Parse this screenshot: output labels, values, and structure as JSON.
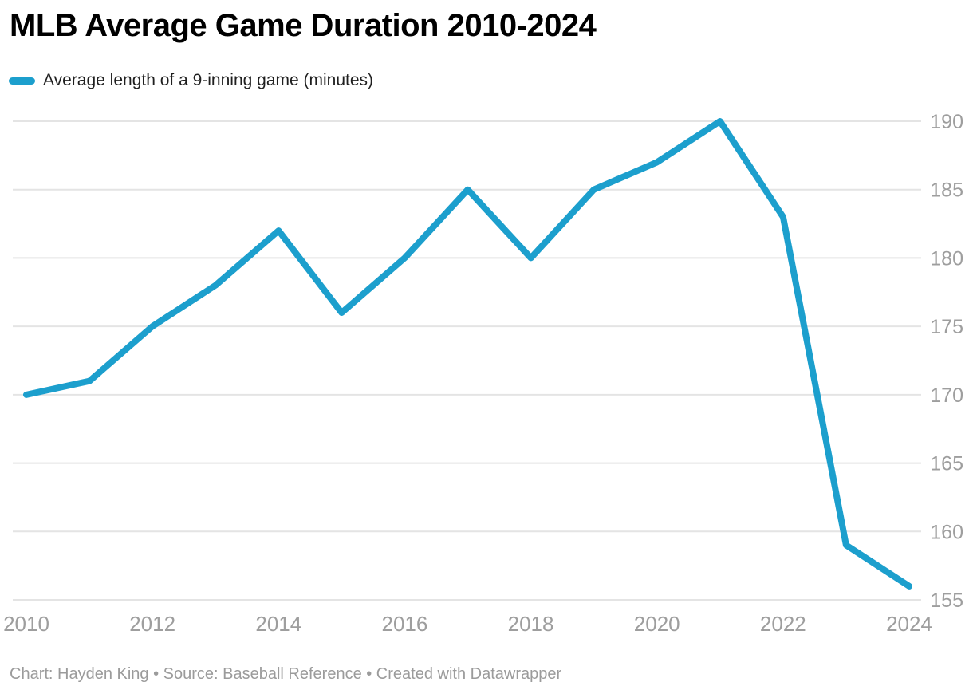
{
  "header": {
    "title": "MLB Average Game Duration 2010-2024"
  },
  "legend": {
    "label": "Average length of a 9-inning game (minutes)"
  },
  "footer": {
    "text": "Chart: Hayden King • Source: Baseball Reference • Created with Datawrapper"
  },
  "chart_data": {
    "type": "line",
    "title": "MLB Average Game Duration 2010-2024",
    "x": [
      2010,
      2011,
      2012,
      2013,
      2014,
      2015,
      2016,
      2017,
      2018,
      2019,
      2020,
      2021,
      2022,
      2023,
      2024
    ],
    "series": [
      {
        "name": "Average length of a 9-inning game (minutes)",
        "values": [
          170,
          171,
          175,
          178,
          182,
          176,
          180,
          185,
          180,
          185,
          187,
          190,
          183,
          159,
          156
        ]
      }
    ],
    "xlabel": "",
    "ylabel": "",
    "ylim": [
      155,
      190
    ],
    "yticks": [
      155,
      160,
      165,
      170,
      175,
      180,
      185,
      190
    ],
    "xticks": [
      2010,
      2012,
      2014,
      2016,
      2018,
      2020,
      2022,
      2024
    ],
    "grid": "horizontal",
    "legend_position": "top-left",
    "ytick_side": "right",
    "line_color": "#1C9FCD",
    "gridline_color": "#e4e4e4",
    "tick_label_color": "#9e9e9e"
  }
}
